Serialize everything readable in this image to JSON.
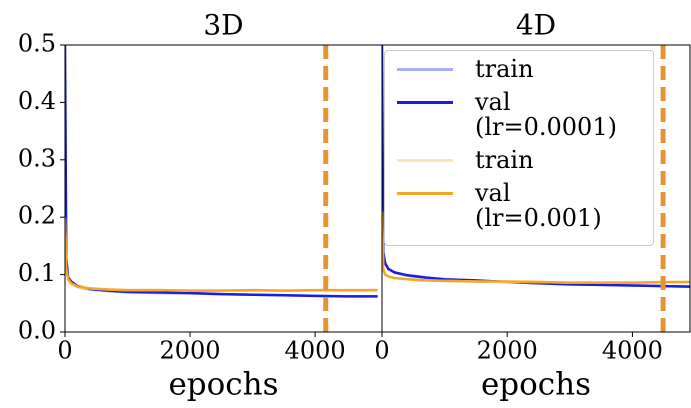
{
  "chart_data": [
    {
      "type": "line",
      "title": "3D",
      "xlabel": "epochs",
      "x": [
        0,
        20,
        50,
        100,
        200,
        400,
        700,
        1000,
        1500,
        2000,
        2500,
        3000,
        3500,
        4000,
        4500,
        5000
      ],
      "series": [
        {
          "name": "train",
          "color": "#a9aef2",
          "values": [
            0.45,
            0.12,
            0.09,
            0.085,
            0.078,
            0.074,
            0.071,
            0.069,
            0.068,
            0.067,
            0.066,
            0.065,
            0.064,
            0.063,
            0.062,
            0.062
          ]
        },
        {
          "name": "val (lr=0.0001)",
          "color": "#1c1ce0",
          "values": [
            0.5,
            0.13,
            0.095,
            0.088,
            0.08,
            0.075,
            0.072,
            0.07,
            0.069,
            0.068,
            0.066,
            0.065,
            0.064,
            0.063,
            0.062,
            0.062
          ]
        },
        {
          "name": "train",
          "color": "#fde3b8",
          "values": [
            0.19,
            0.11,
            0.09,
            0.082,
            0.078,
            0.076,
            0.074,
            0.073,
            0.073,
            0.072,
            0.072,
            0.072,
            0.072,
            0.072,
            0.072,
            0.072
          ]
        },
        {
          "name": "val (lr=0.001)",
          "color": "#f5a524",
          "values": [
            0.2,
            0.11,
            0.092,
            0.085,
            0.079,
            0.076,
            0.074,
            0.073,
            0.073,
            0.072,
            0.072,
            0.073,
            0.072,
            0.073,
            0.073,
            0.073
          ]
        }
      ],
      "xlim": [
        0,
        5070
      ],
      "ylim": [
        0,
        0.5
      ],
      "xticks": [
        0,
        2000,
        4000
      ],
      "yticks": [
        {
          "value": 0,
          "label": "0.0"
        },
        0.1,
        0.2,
        0.3,
        0.4,
        0.5
      ],
      "vline": 4170,
      "vline_color": "#e69433"
    },
    {
      "type": "line",
      "title": "4D",
      "xlabel": "epochs",
      "x": [
        0,
        20,
        50,
        100,
        200,
        400,
        700,
        1000,
        1500,
        2000,
        2500,
        3000,
        3500,
        4000,
        4500,
        4920
      ],
      "series": [
        {
          "name": "train",
          "color": "#a9aef2",
          "values": [
            0.45,
            0.14,
            0.12,
            0.11,
            0.103,
            0.098,
            0.094,
            0.091,
            0.089,
            0.087,
            0.085,
            0.083,
            0.082,
            0.081,
            0.08,
            0.079
          ]
        },
        {
          "name": "val (lr=0.0001)",
          "color": "#1c1ce0",
          "values": [
            0.5,
            0.14,
            0.12,
            0.11,
            0.104,
            0.099,
            0.095,
            0.092,
            0.09,
            0.087,
            0.085,
            0.083,
            0.082,
            0.081,
            0.08,
            0.079
          ]
        },
        {
          "name": "train",
          "color": "#fde3b8",
          "values": [
            0.2,
            0.11,
            0.1,
            0.096,
            0.094,
            0.092,
            0.09,
            0.089,
            0.088,
            0.087,
            0.087,
            0.086,
            0.086,
            0.086,
            0.086,
            0.087
          ]
        },
        {
          "name": "val (lr=0.001)",
          "color": "#f5a524",
          "values": [
            0.21,
            0.11,
            0.1,
            0.097,
            0.094,
            0.092,
            0.09,
            0.089,
            0.088,
            0.088,
            0.087,
            0.086,
            0.086,
            0.086,
            0.087,
            0.087
          ]
        }
      ],
      "xlim": [
        0,
        4920
      ],
      "ylim": [
        0,
        0.5
      ],
      "xticks": [
        0,
        2000,
        4000
      ],
      "vline": 4490,
      "vline_color": "#e69433",
      "legend": "upper right"
    }
  ]
}
